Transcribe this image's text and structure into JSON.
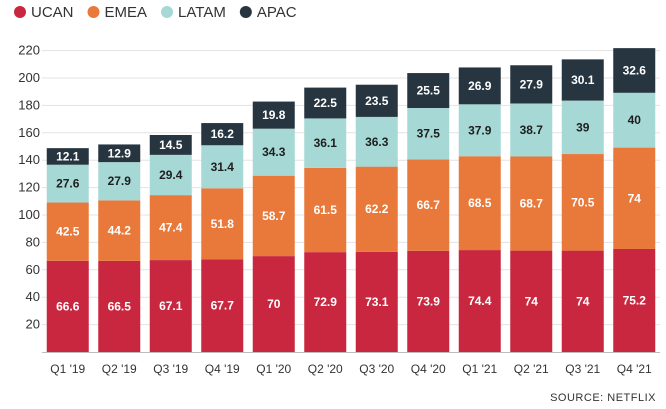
{
  "chart_data": {
    "type": "bar",
    "stacked": true,
    "categories": [
      "Q1 '19",
      "Q2 '19",
      "Q3 '19",
      "Q4 '19",
      "Q1 '20",
      "Q2 '20",
      "Q3 '20",
      "Q4 '20",
      "Q1 '21",
      "Q2 '21",
      "Q3 '21",
      "Q4 '21"
    ],
    "series": [
      {
        "name": "UCAN",
        "color": "#c8273f",
        "label_color": "#ffffff",
        "values": [
          66.6,
          66.5,
          67.1,
          67.7,
          70,
          72.9,
          73.1,
          73.9,
          74.4,
          74,
          74,
          75.2
        ]
      },
      {
        "name": "EMEA",
        "color": "#e8793a",
        "label_color": "#ffffff",
        "values": [
          42.5,
          44.2,
          47.4,
          51.8,
          58.7,
          61.5,
          62.2,
          66.7,
          68.5,
          68.7,
          70.5,
          74
        ]
      },
      {
        "name": "LATAM",
        "color": "#a6d8d5",
        "label_color": "#1e1e1e",
        "values": [
          27.6,
          27.9,
          29.4,
          31.4,
          34.3,
          36.1,
          36.3,
          37.5,
          37.9,
          38.7,
          39,
          40
        ]
      },
      {
        "name": "APAC",
        "color": "#263540",
        "label_color": "#ffffff",
        "values": [
          12.1,
          12.9,
          14.5,
          16.2,
          19.8,
          22.5,
          23.5,
          25.5,
          26.9,
          27.9,
          30.1,
          32.6
        ]
      }
    ],
    "value_labels": [
      [
        "66.6",
        "66.5",
        "67.1",
        "67.7",
        "70",
        "72.9",
        "73.1",
        "73.9",
        "74.4",
        "74",
        "74",
        "75.2"
      ],
      [
        "42.5",
        "44.2",
        "47.4",
        "51.8",
        "58.7",
        "61.5",
        "62.2",
        "66.7",
        "68.5",
        "68.7",
        "70.5",
        "74"
      ],
      [
        "27.6",
        "27.9",
        "29.4",
        "31.4",
        "34.3",
        "36.1",
        "36.3",
        "37.5",
        "37.9",
        "38.7",
        "39",
        "40"
      ],
      [
        "12.1",
        "12.9",
        "14.5",
        "16.2",
        "19.8",
        "22.5",
        "23.5",
        "25.5",
        "26.9",
        "27.9",
        "30.1",
        "32.6"
      ]
    ],
    "y_ticks": [
      20,
      40,
      60,
      80,
      100,
      120,
      140,
      160,
      180,
      200,
      220
    ],
    "ylim": [
      0,
      230
    ],
    "grid": true,
    "legend_position": "top-left",
    "source": "SOURCE: NETFLIX"
  }
}
